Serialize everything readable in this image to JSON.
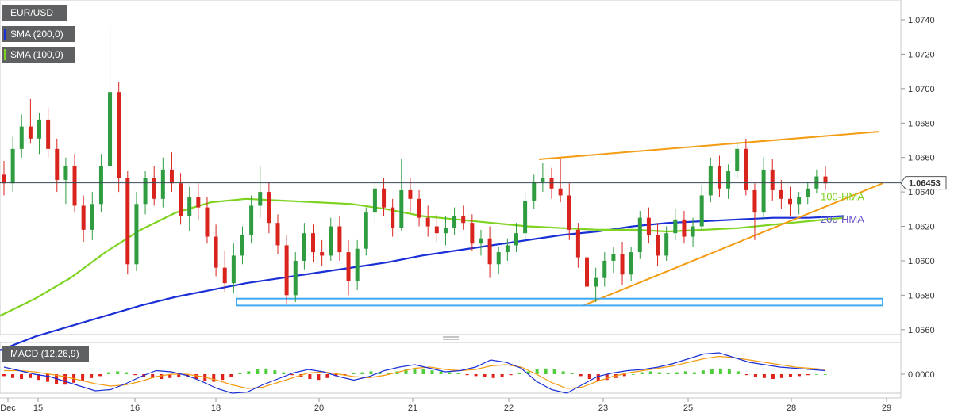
{
  "legend": {
    "symbol": "EUR/USD",
    "sma200": "SMA (200,0)",
    "sma100": "SMA (100,0)",
    "macd": "MACD (12,26,9)",
    "colors": {
      "symbol": "#5f6061",
      "sma200": "#1a2fd6",
      "sma100": "#7ed321"
    }
  },
  "chart_data": {
    "type": "candlestick",
    "title": "EUR/USD",
    "last_price": "1.06453",
    "y_ticks": [
      "1.0740",
      "1.0720",
      "1.0700",
      "1.0680",
      "1.0660",
      "1.0640",
      "1.0620",
      "1.0600",
      "1.0580",
      "1.0560"
    ],
    "ylim": [
      1.0556,
      1.0751
    ],
    "x_ticks": [
      "Dec",
      "15",
      "16",
      "18",
      "20",
      "21",
      "22",
      "23",
      "25",
      "28",
      "29"
    ],
    "candles": [
      [
        1.065,
        1.0658,
        1.0638,
        1.0645
      ],
      [
        1.0645,
        1.0672,
        1.064,
        1.0665
      ],
      [
        1.0665,
        1.0685,
        1.066,
        1.0678
      ],
      [
        1.0678,
        1.0694,
        1.0668,
        1.0671
      ],
      [
        1.0671,
        1.0686,
        1.0662,
        1.0682
      ],
      [
        1.0682,
        1.0689,
        1.066,
        1.0665
      ],
      [
        1.0665,
        1.0671,
        1.064,
        1.0647
      ],
      [
        1.0647,
        1.066,
        1.0633,
        1.0655
      ],
      [
        1.0655,
        1.0662,
        1.0628,
        1.0632
      ],
      [
        1.0632,
        1.0638,
        1.0611,
        1.0618
      ],
      [
        1.0618,
        1.064,
        1.0612,
        1.0633
      ],
      [
        1.0633,
        1.0662,
        1.0628,
        1.0655
      ],
      [
        1.0655,
        1.0736,
        1.065,
        1.0698
      ],
      [
        1.0698,
        1.0704,
        1.064,
        1.0648
      ],
      [
        1.0648,
        1.0652,
        1.0592,
        1.0598
      ],
      [
        1.0598,
        1.064,
        1.0594,
        1.0633
      ],
      [
        1.0633,
        1.0652,
        1.0627,
        1.0648
      ],
      [
        1.0648,
        1.0655,
        1.0632,
        1.0636
      ],
      [
        1.0636,
        1.066,
        1.0631,
        1.0653
      ],
      [
        1.0653,
        1.0663,
        1.064,
        1.0645
      ],
      [
        1.0645,
        1.0651,
        1.0621,
        1.0626
      ],
      [
        1.0626,
        1.0643,
        1.0617,
        1.0637
      ],
      [
        1.0637,
        1.0645,
        1.0624,
        1.0631
      ],
      [
        1.0631,
        1.0637,
        1.061,
        1.0614
      ],
      [
        1.0614,
        1.0621,
        1.0591,
        1.0596
      ],
      [
        1.0596,
        1.0606,
        1.0582,
        1.0587
      ],
      [
        1.0587,
        1.061,
        1.0581,
        1.0603
      ],
      [
        1.0603,
        1.062,
        1.0598,
        1.0615
      ],
      [
        1.0615,
        1.0638,
        1.061,
        1.0632
      ],
      [
        1.0632,
        1.0655,
        1.0625,
        1.064
      ],
      [
        1.064,
        1.0646,
        1.0616,
        1.0622
      ],
      [
        1.0622,
        1.0627,
        1.0604,
        1.0609
      ],
      [
        1.0609,
        1.0615,
        1.0575,
        1.058
      ],
      [
        1.058,
        1.0605,
        1.0576,
        1.06
      ],
      [
        1.06,
        1.0622,
        1.0595,
        1.0616
      ],
      [
        1.0616,
        1.0621,
        1.0599,
        1.0605
      ],
      [
        1.0605,
        1.0612,
        1.0597,
        1.0603
      ],
      [
        1.0603,
        1.0625,
        1.06,
        1.062
      ],
      [
        1.062,
        1.0626,
        1.06,
        1.0605
      ],
      [
        1.0605,
        1.0612,
        1.058,
        1.0588
      ],
      [
        1.0588,
        1.0612,
        1.0583,
        1.0607
      ],
      [
        1.0607,
        1.0631,
        1.0603,
        1.0628
      ],
      [
        1.0628,
        1.0647,
        1.0621,
        1.0642
      ],
      [
        1.0642,
        1.0648,
        1.0626,
        1.0631
      ],
      [
        1.0631,
        1.0636,
        1.0614,
        1.0619
      ],
      [
        1.0619,
        1.0659,
        1.0617,
        1.0641
      ],
      [
        1.0641,
        1.0648,
        1.0628,
        1.0636
      ],
      [
        1.0636,
        1.0641,
        1.062,
        1.0625
      ],
      [
        1.0625,
        1.0632,
        1.0614,
        1.062
      ],
      [
        1.062,
        1.0627,
        1.0611,
        1.0616
      ],
      [
        1.0616,
        1.0626,
        1.0609,
        1.0619
      ],
      [
        1.0619,
        1.0631,
        1.0615,
        1.0626
      ],
      [
        1.0626,
        1.0632,
        1.0618,
        1.0622
      ],
      [
        1.0622,
        1.0627,
        1.0606,
        1.061
      ],
      [
        1.061,
        1.0618,
        1.0603,
        1.0613
      ],
      [
        1.0613,
        1.062,
        1.059,
        1.0598
      ],
      [
        1.0598,
        1.0608,
        1.0592,
        1.0605
      ],
      [
        1.0605,
        1.0613,
        1.06,
        1.0609
      ],
      [
        1.0609,
        1.0622,
        1.0605,
        1.0616
      ],
      [
        1.0616,
        1.064,
        1.0612,
        1.0635
      ],
      [
        1.0635,
        1.065,
        1.063,
        1.0646
      ],
      [
        1.0646,
        1.0657,
        1.064,
        1.0648
      ],
      [
        1.0648,
        1.0654,
        1.0636,
        1.0642
      ],
      [
        1.0642,
        1.0659,
        1.0634,
        1.0638
      ],
      [
        1.0638,
        1.0645,
        1.0612,
        1.0618
      ],
      [
        1.0618,
        1.0622,
        1.0596,
        1.0602
      ],
      [
        1.0602,
        1.0607,
        1.058,
        1.0585
      ],
      [
        1.0585,
        1.0596,
        1.0576,
        1.059
      ],
      [
        1.059,
        1.0605,
        1.0585,
        1.06
      ],
      [
        1.06,
        1.0608,
        1.0593,
        1.0604
      ],
      [
        1.0604,
        1.0611,
        1.0586,
        1.0592
      ],
      [
        1.0592,
        1.0608,
        1.0588,
        1.0605
      ],
      [
        1.0605,
        1.0629,
        1.0601,
        1.0625
      ],
      [
        1.0625,
        1.0631,
        1.061,
        1.0615
      ],
      [
        1.0615,
        1.0622,
        1.0597,
        1.0603
      ],
      [
        1.0603,
        1.062,
        1.06,
        1.0616
      ],
      [
        1.0616,
        1.063,
        1.0612,
        1.0624
      ],
      [
        1.0624,
        1.0629,
        1.061,
        1.0614
      ],
      [
        1.0614,
        1.0625,
        1.0608,
        1.062
      ],
      [
        1.062,
        1.0644,
        1.0617,
        1.0638
      ],
      [
        1.0638,
        1.066,
        1.0634,
        1.0655
      ],
      [
        1.0655,
        1.0661,
        1.0637,
        1.0642
      ],
      [
        1.0642,
        1.0656,
        1.0636,
        1.0652
      ],
      [
        1.0652,
        1.0669,
        1.0648,
        1.0665
      ],
      [
        1.0665,
        1.0671,
        1.0638,
        1.0641
      ],
      [
        1.0641,
        1.0645,
        1.0612,
        1.0628
      ],
      [
        1.0628,
        1.066,
        1.0624,
        1.0653
      ],
      [
        1.0653,
        1.0659,
        1.0635,
        1.0641
      ],
      [
        1.0641,
        1.0647,
        1.063,
        1.0636
      ],
      [
        1.0636,
        1.0643,
        1.0626,
        1.0633
      ],
      [
        1.0633,
        1.064,
        1.0627,
        1.0637
      ],
      [
        1.0637,
        1.0646,
        1.0633,
        1.0642
      ],
      [
        1.0642,
        1.0653,
        1.0639,
        1.0649
      ],
      [
        1.0649,
        1.0655,
        1.0641,
        1.0645
      ]
    ],
    "series": [
      {
        "name": "200-HMA",
        "color": "#1a2fd6",
        "values": [
          1.0548,
          1.0556,
          1.0562,
          1.0568,
          1.0574,
          1.0579,
          1.0583,
          1.0587,
          1.059,
          1.0593,
          1.0596,
          1.0599,
          1.0603,
          1.0606,
          1.0609,
          1.0612,
          1.0615,
          1.0617,
          1.062,
          1.0622,
          1.0623,
          1.0624,
          1.0625,
          1.0625,
          1.0626
        ]
      },
      {
        "name": "100-HMA",
        "color": "#7ed321",
        "values": [
          1.0568,
          1.0578,
          1.059,
          1.0605,
          1.0618,
          1.0628,
          1.0634,
          1.0636,
          1.0635,
          1.0634,
          1.0633,
          1.063,
          1.0626,
          1.0624,
          1.0622,
          1.062,
          1.0619,
          1.0618,
          1.0618,
          1.0617,
          1.0618,
          1.0619,
          1.0621,
          1.0623,
          1.0625
        ]
      }
    ],
    "annotations": [
      "100-HMA",
      "200-HMA"
    ],
    "macd": {
      "title": "MACD (12,26,9)",
      "y_ticks": [
        "0.0000"
      ],
      "histogram": [
        -0.2,
        -0.4,
        -0.5,
        -0.4,
        -0.6,
        -0.8,
        -1.0,
        -1.1,
        -0.9,
        -0.7,
        -0.4,
        -0.2,
        0.2,
        0.3,
        0.2,
        -0.1,
        -0.3,
        -0.4,
        -0.5,
        -0.4,
        -0.3,
        -0.3,
        -0.5,
        -0.7,
        -0.8,
        -0.6,
        -0.3,
        0.1,
        0.3,
        0.5,
        0.6,
        0.4,
        0.2,
        -0.1,
        -0.3,
        -0.5,
        -0.6,
        -0.4,
        -0.2,
        -0.1,
        0.1,
        0.2,
        0.3,
        0.2,
        0.1,
        0.3,
        0.5,
        0.6,
        0.5,
        0.4,
        0.3,
        0.2,
        0.1,
        -0.1,
        -0.2,
        -0.3,
        -0.4,
        -0.3,
        -0.1,
        0.1,
        0.3,
        0.5,
        0.6,
        0.5,
        0.3,
        0.1,
        -0.2,
        -0.5,
        -0.7,
        -0.6,
        -0.4,
        -0.2,
        0.0,
        0.2,
        0.3,
        0.2,
        0.1,
        0.2,
        0.3,
        0.2,
        0.4,
        0.5,
        0.6,
        0.5,
        0.3,
        -0.1,
        -0.3,
        -0.4,
        -0.5,
        -0.4,
        -0.3,
        -0.2,
        -0.1,
        0.0,
        0.0
      ],
      "macd_line": [
        0.6,
        0.3,
        0.0,
        -0.2,
        -0.6,
        -1.0,
        -1.4,
        -1.3,
        -0.8,
        -0.2,
        0.3,
        0.2,
        -0.1,
        -0.6,
        -1.2,
        -1.6,
        -1.5,
        -0.9,
        -0.4,
        0.1,
        0.4,
        0.2,
        -0.2,
        -0.5,
        -0.2,
        0.3,
        0.6,
        0.8,
        0.5,
        0.2,
        0.3,
        0.6,
        1.2,
        1.0,
        0.5,
        -0.6,
        -1.3,
        -1.6,
        -0.9,
        -0.2,
        0.1,
        0.3,
        0.4,
        0.6,
        0.9,
        1.3,
        1.7,
        1.8,
        1.4,
        1.0,
        0.8,
        0.6,
        0.5,
        0.4,
        0.3
      ],
      "signal_line": [
        0.3,
        0.3,
        0.2,
        0.0,
        -0.2,
        -0.5,
        -0.8,
        -1.0,
        -0.9,
        -0.6,
        -0.2,
        0.0,
        0.0,
        -0.2,
        -0.5,
        -0.9,
        -1.2,
        -1.1,
        -0.7,
        -0.3,
        0.1,
        0.2,
        0.0,
        -0.2,
        -0.3,
        -0.1,
        0.2,
        0.5,
        0.6,
        0.4,
        0.3,
        0.4,
        0.7,
        0.8,
        0.6,
        0.0,
        -0.7,
        -1.2,
        -1.1,
        -0.6,
        -0.2,
        0.1,
        0.3,
        0.5,
        0.7,
        1.0,
        1.3,
        1.5,
        1.4,
        1.2,
        1.0,
        0.8,
        0.6,
        0.5,
        0.4
      ]
    }
  },
  "annotation_colors": {
    "trendline": "#f39c12",
    "support_box": "#3fa9f5",
    "bull": "#2e9c3f",
    "bear": "#d9241e",
    "last_price_tag": "#3a4a5a"
  }
}
